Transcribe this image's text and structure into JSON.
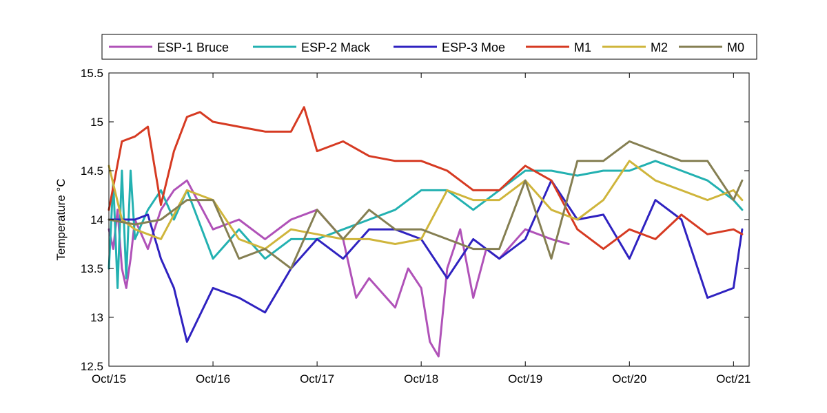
{
  "chart_data": {
    "type": "line",
    "title": "",
    "xlabel": "",
    "ylabel": "Temperature °C",
    "xlim": [
      "Oct/15",
      "Oct/21"
    ],
    "ylim": [
      12.5,
      15.5
    ],
    "x_ticks": [
      "Oct/15",
      "Oct/16",
      "Oct/17",
      "Oct/18",
      "Oct/19",
      "Oct/20",
      "Oct/21"
    ],
    "y_ticks": [
      "12.5",
      "13",
      "13.5",
      "14",
      "14.5",
      "15",
      "15.5"
    ],
    "grid": false,
    "legend_position": "top, horizontal",
    "series": [
      {
        "name": "ESP-1 Bruce",
        "color": "#b052b8",
        "x": [
          "Oct/15 00:00",
          "Oct/15 01:00",
          "Oct/15 02:00",
          "Oct/15 03:00",
          "Oct/15 04:00",
          "Oct/15 05:00",
          "Oct/15 06:00",
          "Oct/15 09:00",
          "Oct/15 12:00",
          "Oct/15 15:00",
          "Oct/15 18:00",
          "Oct/16 00:00",
          "Oct/16 06:00",
          "Oct/16 12:00",
          "Oct/16 18:00",
          "Oct/17 00:00",
          "Oct/17 06:00",
          "Oct/17 09:00",
          "Oct/17 12:00",
          "Oct/17 18:00",
          "Oct/17 21:00",
          "Oct/18 00:00",
          "Oct/18 02:00",
          "Oct/18 04:00",
          "Oct/18 06:00",
          "Oct/18 09:00",
          "Oct/18 12:00",
          "Oct/18 15:00",
          "Oct/18 18:00",
          "Oct/19 00:00",
          "Oct/19 06:00",
          "Oct/19 10:00"
        ],
        "y": [
          13.9,
          13.7,
          14.1,
          13.5,
          13.3,
          13.6,
          14.0,
          13.7,
          14.1,
          14.3,
          14.4,
          13.9,
          14.0,
          13.8,
          14.0,
          14.1,
          13.8,
          13.2,
          13.4,
          13.1,
          13.5,
          13.3,
          12.75,
          12.6,
          13.5,
          13.9,
          13.2,
          13.7,
          13.6,
          13.9,
          13.8,
          13.75
        ]
      },
      {
        "name": "ESP-2 Mack",
        "color": "#23b1b1",
        "x": [
          "Oct/15 00:00",
          "Oct/15 01:00",
          "Oct/15 02:00",
          "Oct/15 03:00",
          "Oct/15 04:00",
          "Oct/15 05:00",
          "Oct/15 06:00",
          "Oct/15 09:00",
          "Oct/15 12:00",
          "Oct/15 15:00",
          "Oct/15 18:00",
          "Oct/16 00:00",
          "Oct/16 06:00",
          "Oct/16 12:00",
          "Oct/16 18:00",
          "Oct/17 00:00",
          "Oct/17 06:00",
          "Oct/17 12:00",
          "Oct/17 18:00",
          "Oct/18 00:00",
          "Oct/18 06:00",
          "Oct/18 12:00",
          "Oct/18 18:00",
          "Oct/19 00:00",
          "Oct/19 06:00",
          "Oct/19 12:00",
          "Oct/19 18:00",
          "Oct/20 00:00",
          "Oct/20 06:00",
          "Oct/20 12:00",
          "Oct/20 18:00",
          "Oct/21 00:00",
          "Oct/21 02:00"
        ],
        "y": [
          13.5,
          14.4,
          13.3,
          14.5,
          13.4,
          14.5,
          13.8,
          14.1,
          14.3,
          14.0,
          14.3,
          13.6,
          13.9,
          13.6,
          13.8,
          13.8,
          13.9,
          14.0,
          14.1,
          14.3,
          14.3,
          14.1,
          14.3,
          14.5,
          14.5,
          14.45,
          14.5,
          14.5,
          14.6,
          14.5,
          14.4,
          14.2,
          14.1
        ]
      },
      {
        "name": "ESP-3 Moe",
        "color": "#2f22c0",
        "x": [
          "Oct/15 00:00",
          "Oct/15 06:00",
          "Oct/15 09:00",
          "Oct/15 12:00",
          "Oct/15 15:00",
          "Oct/15 18:00",
          "Oct/16 00:00",
          "Oct/16 06:00",
          "Oct/16 12:00",
          "Oct/16 18:00",
          "Oct/17 00:00",
          "Oct/17 06:00",
          "Oct/17 12:00",
          "Oct/17 18:00",
          "Oct/18 00:00",
          "Oct/18 06:00",
          "Oct/18 12:00",
          "Oct/18 18:00",
          "Oct/19 00:00",
          "Oct/19 06:00",
          "Oct/19 12:00",
          "Oct/19 18:00",
          "Oct/20 00:00",
          "Oct/20 06:00",
          "Oct/20 12:00",
          "Oct/20 18:00",
          "Oct/21 00:00",
          "Oct/21 02:00"
        ],
        "y": [
          14.0,
          14.0,
          14.05,
          13.6,
          13.3,
          12.75,
          13.3,
          13.2,
          13.05,
          13.5,
          13.8,
          13.6,
          13.9,
          13.9,
          13.8,
          13.4,
          13.8,
          13.6,
          13.8,
          14.4,
          14.0,
          14.05,
          13.6,
          14.2,
          14.0,
          13.2,
          13.3,
          13.9
        ]
      },
      {
        "name": "M1",
        "color": "#d63a22",
        "x": [
          "Oct/15 00:00",
          "Oct/15 03:00",
          "Oct/15 06:00",
          "Oct/15 09:00",
          "Oct/15 12:00",
          "Oct/15 15:00",
          "Oct/15 18:00",
          "Oct/15 21:00",
          "Oct/16 00:00",
          "Oct/16 06:00",
          "Oct/16 12:00",
          "Oct/16 18:00",
          "Oct/16 21:00",
          "Oct/17 00:00",
          "Oct/17 06:00",
          "Oct/17 12:00",
          "Oct/17 18:00",
          "Oct/18 00:00",
          "Oct/18 06:00",
          "Oct/18 12:00",
          "Oct/18 18:00",
          "Oct/19 00:00",
          "Oct/19 06:00",
          "Oct/19 12:00",
          "Oct/19 18:00",
          "Oct/20 00:00",
          "Oct/20 06:00",
          "Oct/20 12:00",
          "Oct/20 18:00",
          "Oct/21 00:00",
          "Oct/21 02:00"
        ],
        "y": [
          14.1,
          14.8,
          14.85,
          14.95,
          14.15,
          14.7,
          15.05,
          15.1,
          15.0,
          14.95,
          14.9,
          14.9,
          15.15,
          14.7,
          14.8,
          14.65,
          14.6,
          14.6,
          14.5,
          14.3,
          14.3,
          14.55,
          14.4,
          13.9,
          13.7,
          13.9,
          13.8,
          14.05,
          13.85,
          13.9,
          13.85
        ]
      },
      {
        "name": "M2",
        "color": "#cfb53b",
        "x": [
          "Oct/15 00:00",
          "Oct/15 03:00",
          "Oct/15 06:00",
          "Oct/15 12:00",
          "Oct/15 18:00",
          "Oct/16 00:00",
          "Oct/16 06:00",
          "Oct/16 12:00",
          "Oct/16 18:00",
          "Oct/17 00:00",
          "Oct/17 06:00",
          "Oct/17 12:00",
          "Oct/17 18:00",
          "Oct/18 00:00",
          "Oct/18 06:00",
          "Oct/18 12:00",
          "Oct/18 18:00",
          "Oct/19 00:00",
          "Oct/19 06:00",
          "Oct/19 12:00",
          "Oct/19 18:00",
          "Oct/20 00:00",
          "Oct/20 06:00",
          "Oct/20 12:00",
          "Oct/20 18:00",
          "Oct/21 00:00",
          "Oct/21 02:00"
        ],
        "y": [
          14.55,
          14.0,
          13.9,
          13.8,
          14.3,
          14.2,
          13.8,
          13.7,
          13.9,
          13.85,
          13.8,
          13.8,
          13.75,
          13.8,
          14.3,
          14.2,
          14.2,
          14.4,
          14.1,
          14.0,
          14.2,
          14.6,
          14.4,
          14.3,
          14.2,
          14.3,
          14.2
        ]
      },
      {
        "name": "M0",
        "color": "#857f52",
        "x": [
          "Oct/15 00:00",
          "Oct/15 06:00",
          "Oct/15 12:00",
          "Oct/15 18:00",
          "Oct/16 00:00",
          "Oct/16 06:00",
          "Oct/16 12:00",
          "Oct/16 18:00",
          "Oct/17 00:00",
          "Oct/17 06:00",
          "Oct/17 12:00",
          "Oct/17 18:00",
          "Oct/18 00:00",
          "Oct/18 06:00",
          "Oct/18 12:00",
          "Oct/18 18:00",
          "Oct/19 00:00",
          "Oct/19 06:00",
          "Oct/19 12:00",
          "Oct/19 18:00",
          "Oct/20 00:00",
          "Oct/20 06:00",
          "Oct/20 12:00",
          "Oct/20 18:00",
          "Oct/21 00:00",
          "Oct/21 02:00"
        ],
        "y": [
          14.0,
          13.95,
          14.0,
          14.2,
          14.2,
          13.6,
          13.7,
          13.5,
          14.1,
          13.8,
          14.1,
          13.9,
          13.9,
          13.8,
          13.7,
          13.7,
          14.4,
          13.6,
          14.6,
          14.6,
          14.8,
          14.7,
          14.6,
          14.6,
          14.2,
          14.4
        ]
      }
    ]
  }
}
